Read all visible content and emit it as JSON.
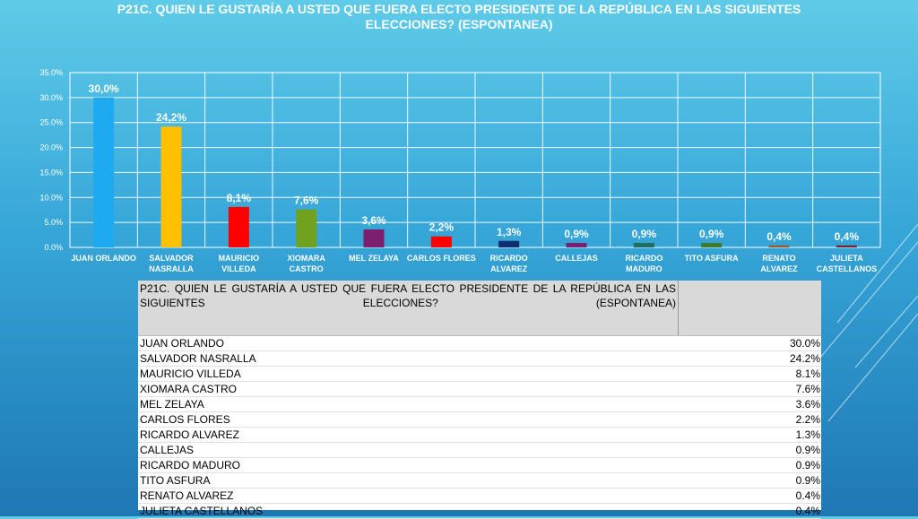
{
  "title": "P21C. QUIEN LE GUSTARÍA A USTED QUE FUERA ELECTO PRESIDENTE DE LA REPÚBLICA EN LAS SIGUIENTES ELECCIONES? (ESPONTANEA)",
  "chart_data": {
    "type": "bar",
    "title": "P21C. QUIEN LE GUSTARÍA A USTED QUE FUERA ELECTO PRESIDENTE DE LA REPÚBLICA EN LAS SIGUIENTES ELECCIONES? (ESPONTANEA)",
    "categories": [
      [
        "JUAN ORLANDO"
      ],
      [
        "SALVADOR",
        "NASRALLA"
      ],
      [
        "MAURICIO",
        "VILLEDA"
      ],
      [
        "XIOMARA",
        "CASTRO"
      ],
      [
        "MEL ZELAYA"
      ],
      [
        "CARLOS FLORES"
      ],
      [
        "RICARDO",
        "ALVAREZ"
      ],
      [
        "CALLEJAS"
      ],
      [
        "RICARDO",
        "MADURO"
      ],
      [
        "TITO ASFURA"
      ],
      [
        "RENATO",
        "ALVAREZ"
      ],
      [
        "JULIETA",
        "CASTELLANOS"
      ]
    ],
    "values": [
      30.0,
      24.2,
      8.1,
      7.6,
      3.6,
      2.2,
      1.3,
      0.9,
      0.9,
      0.9,
      0.4,
      0.4
    ],
    "data_labels": [
      "30,0%",
      "24,2%",
      "8,1%",
      "7,6%",
      "3,6%",
      "2,2%",
      "1,3%",
      "0,9%",
      "0,9%",
      "0,9%",
      "0,4%",
      "0,4%"
    ],
    "colors": [
      "#1eaaf1",
      "#ffc000",
      "#ff0000",
      "#70a21f",
      "#7b1f6e",
      "#ff0000",
      "#0e2f6e",
      "#7b1f6e",
      "#1f6e5e",
      "#3f7a2a",
      "#a05a2c",
      "#7a1f2f"
    ],
    "yticks": [
      "0.0%",
      "5.0%",
      "10.0%",
      "15.0%",
      "20.0%",
      "25.0%",
      "30.0%",
      "35.0%"
    ],
    "ylim": [
      0,
      35
    ],
    "grid": true,
    "legend": "none"
  },
  "table": {
    "header": "P21C. QUIEN LE GUSTARÍA A USTED QUE FUERA ELECTO PRESIDENTE DE LA REPÚBLICA EN LAS SIGUIENTES ELECCIONES? (ESPONTANEA)",
    "rows": [
      {
        "name": "JUAN ORLANDO",
        "value": "30.0%"
      },
      {
        "name": "SALVADOR NASRALLA",
        "value": "24.2%"
      },
      {
        "name": "MAURICIO VILLEDA",
        "value": "8.1%"
      },
      {
        "name": "XIOMARA CASTRO",
        "value": "7.6%"
      },
      {
        "name": "MEL ZELAYA",
        "value": "3.6%"
      },
      {
        "name": "CARLOS FLORES",
        "value": "2.2%"
      },
      {
        "name": "RICARDO ALVAREZ",
        "value": "1.3%"
      },
      {
        "name": "CALLEJAS",
        "value": "0.9%"
      },
      {
        "name": "RICARDO MADURO",
        "value": "0.9%"
      },
      {
        "name": "TITO ASFURA",
        "value": "0.9%"
      },
      {
        "name": "RENATO ALVAREZ",
        "value": "0.4%"
      },
      {
        "name": "JULIETA CASTELLANOS",
        "value": "0.4%"
      }
    ]
  }
}
